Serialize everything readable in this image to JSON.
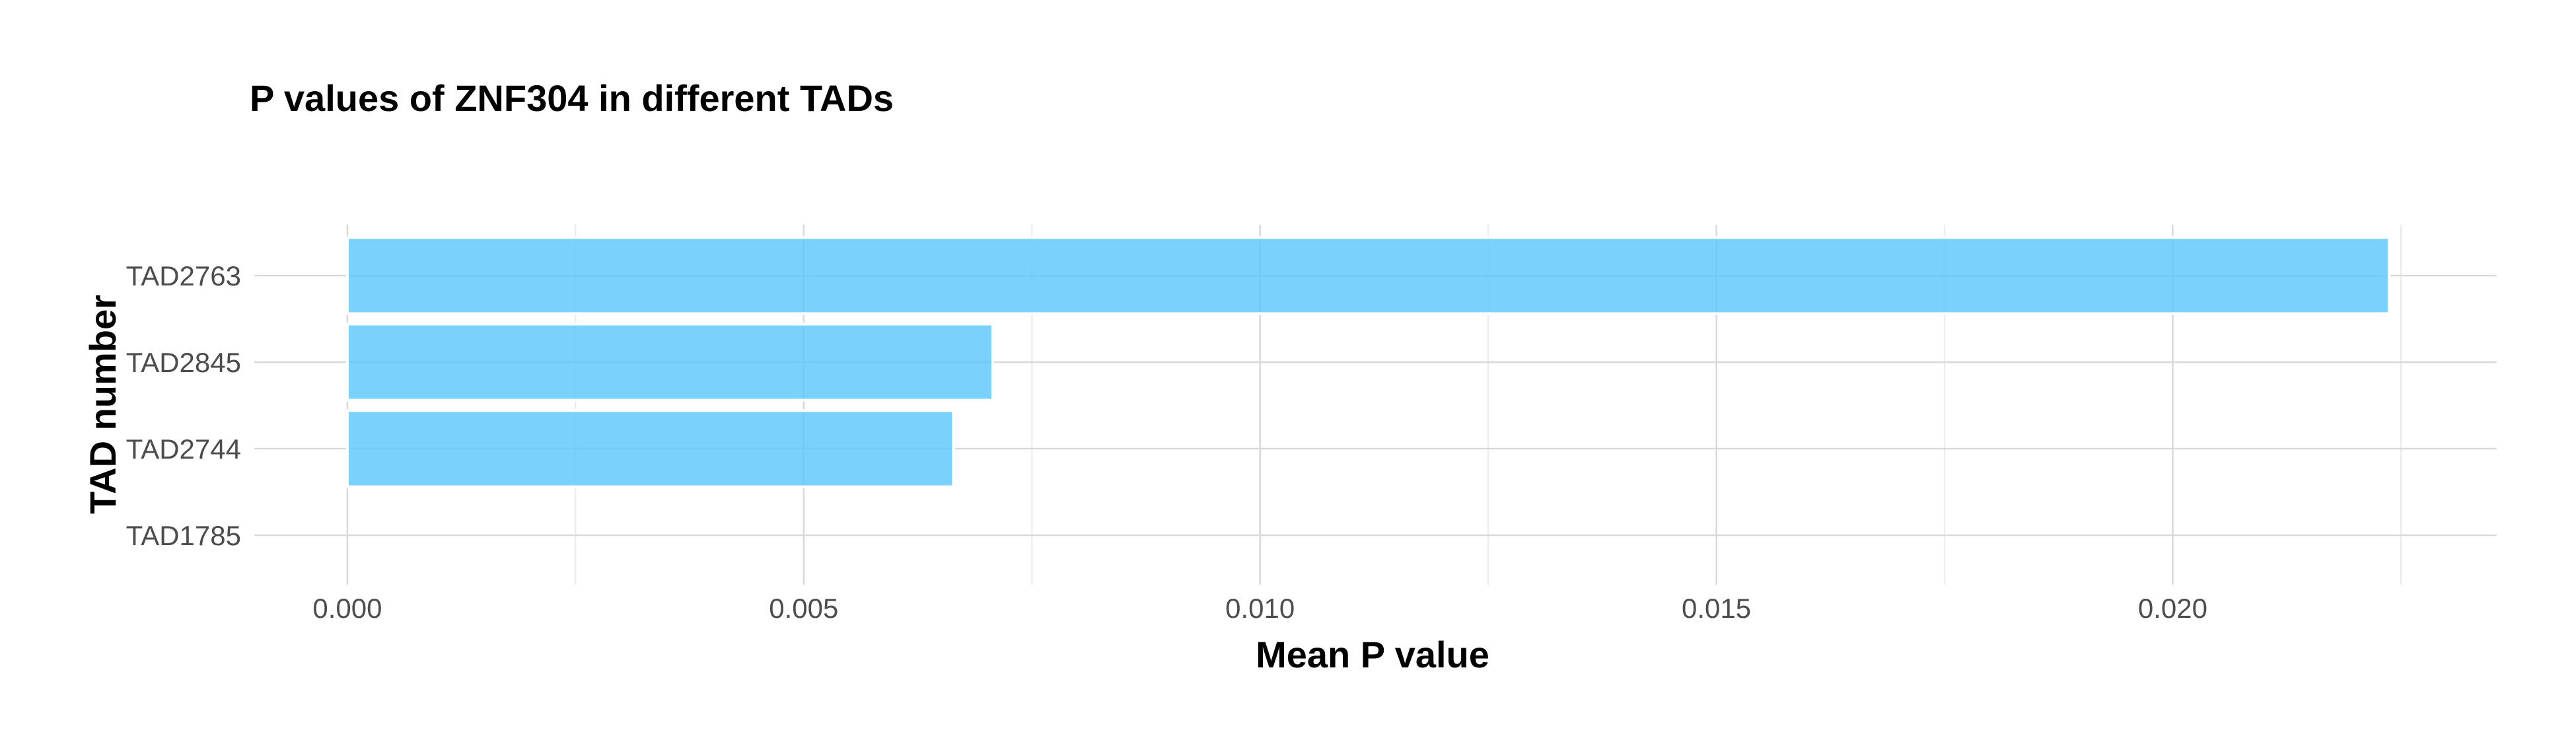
{
  "chart_data": {
    "type": "bar",
    "orientation": "horizontal",
    "title": "P values of ZNF304 in different TADs",
    "xlabel": "Mean P value",
    "ylabel": "TAD number",
    "categories": [
      "TAD2763",
      "TAD2845",
      "TAD2744",
      "TAD1785"
    ],
    "values": [
      0.02237,
      0.00707,
      0.00664,
      0.0
    ],
    "xlim": [
      -0.00102,
      0.02355
    ],
    "xticks": [
      0.0,
      0.005,
      0.01,
      0.015,
      0.02
    ],
    "xtick_labels": [
      "0.000",
      "0.005",
      "0.010",
      "0.015",
      "0.020"
    ],
    "grid": true,
    "legend": "none",
    "bar_color": "#5AC8FA"
  }
}
